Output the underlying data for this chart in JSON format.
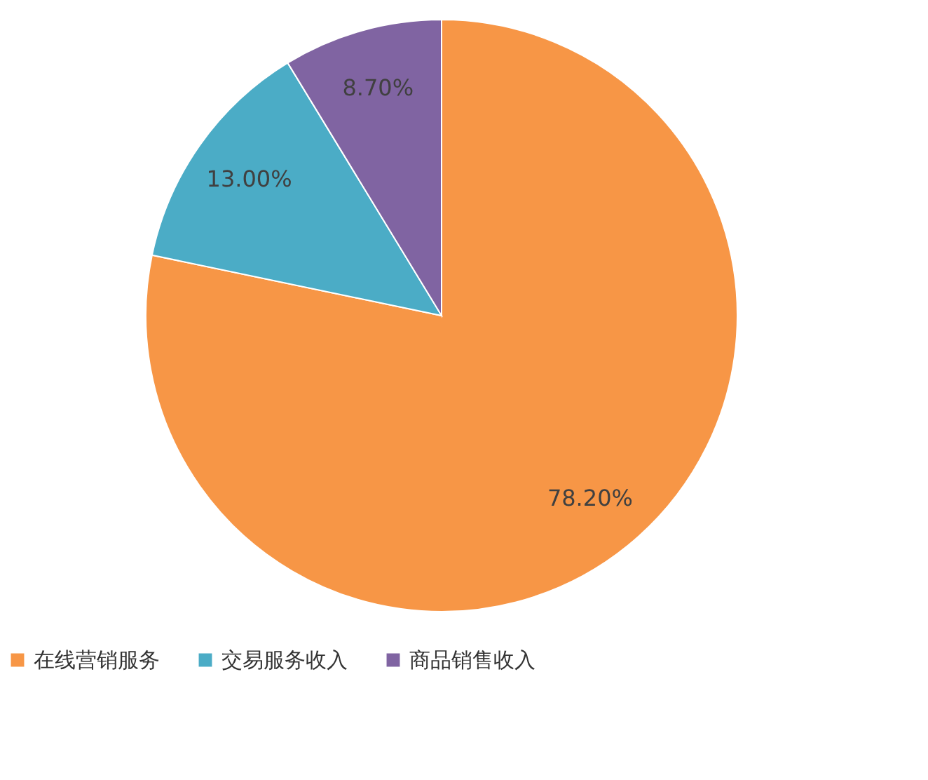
{
  "chart_data": {
    "type": "pie",
    "categories": [
      "在线营销服务",
      "交易服务收入",
      "商品销售收入"
    ],
    "values": [
      78.2,
      13.0,
      8.7
    ],
    "colors": [
      "#f79646",
      "#4bacc6",
      "#8064a2"
    ],
    "value_labels": [
      "78.20%",
      "13.00%",
      "8.70%"
    ],
    "legend": "bottom"
  }
}
